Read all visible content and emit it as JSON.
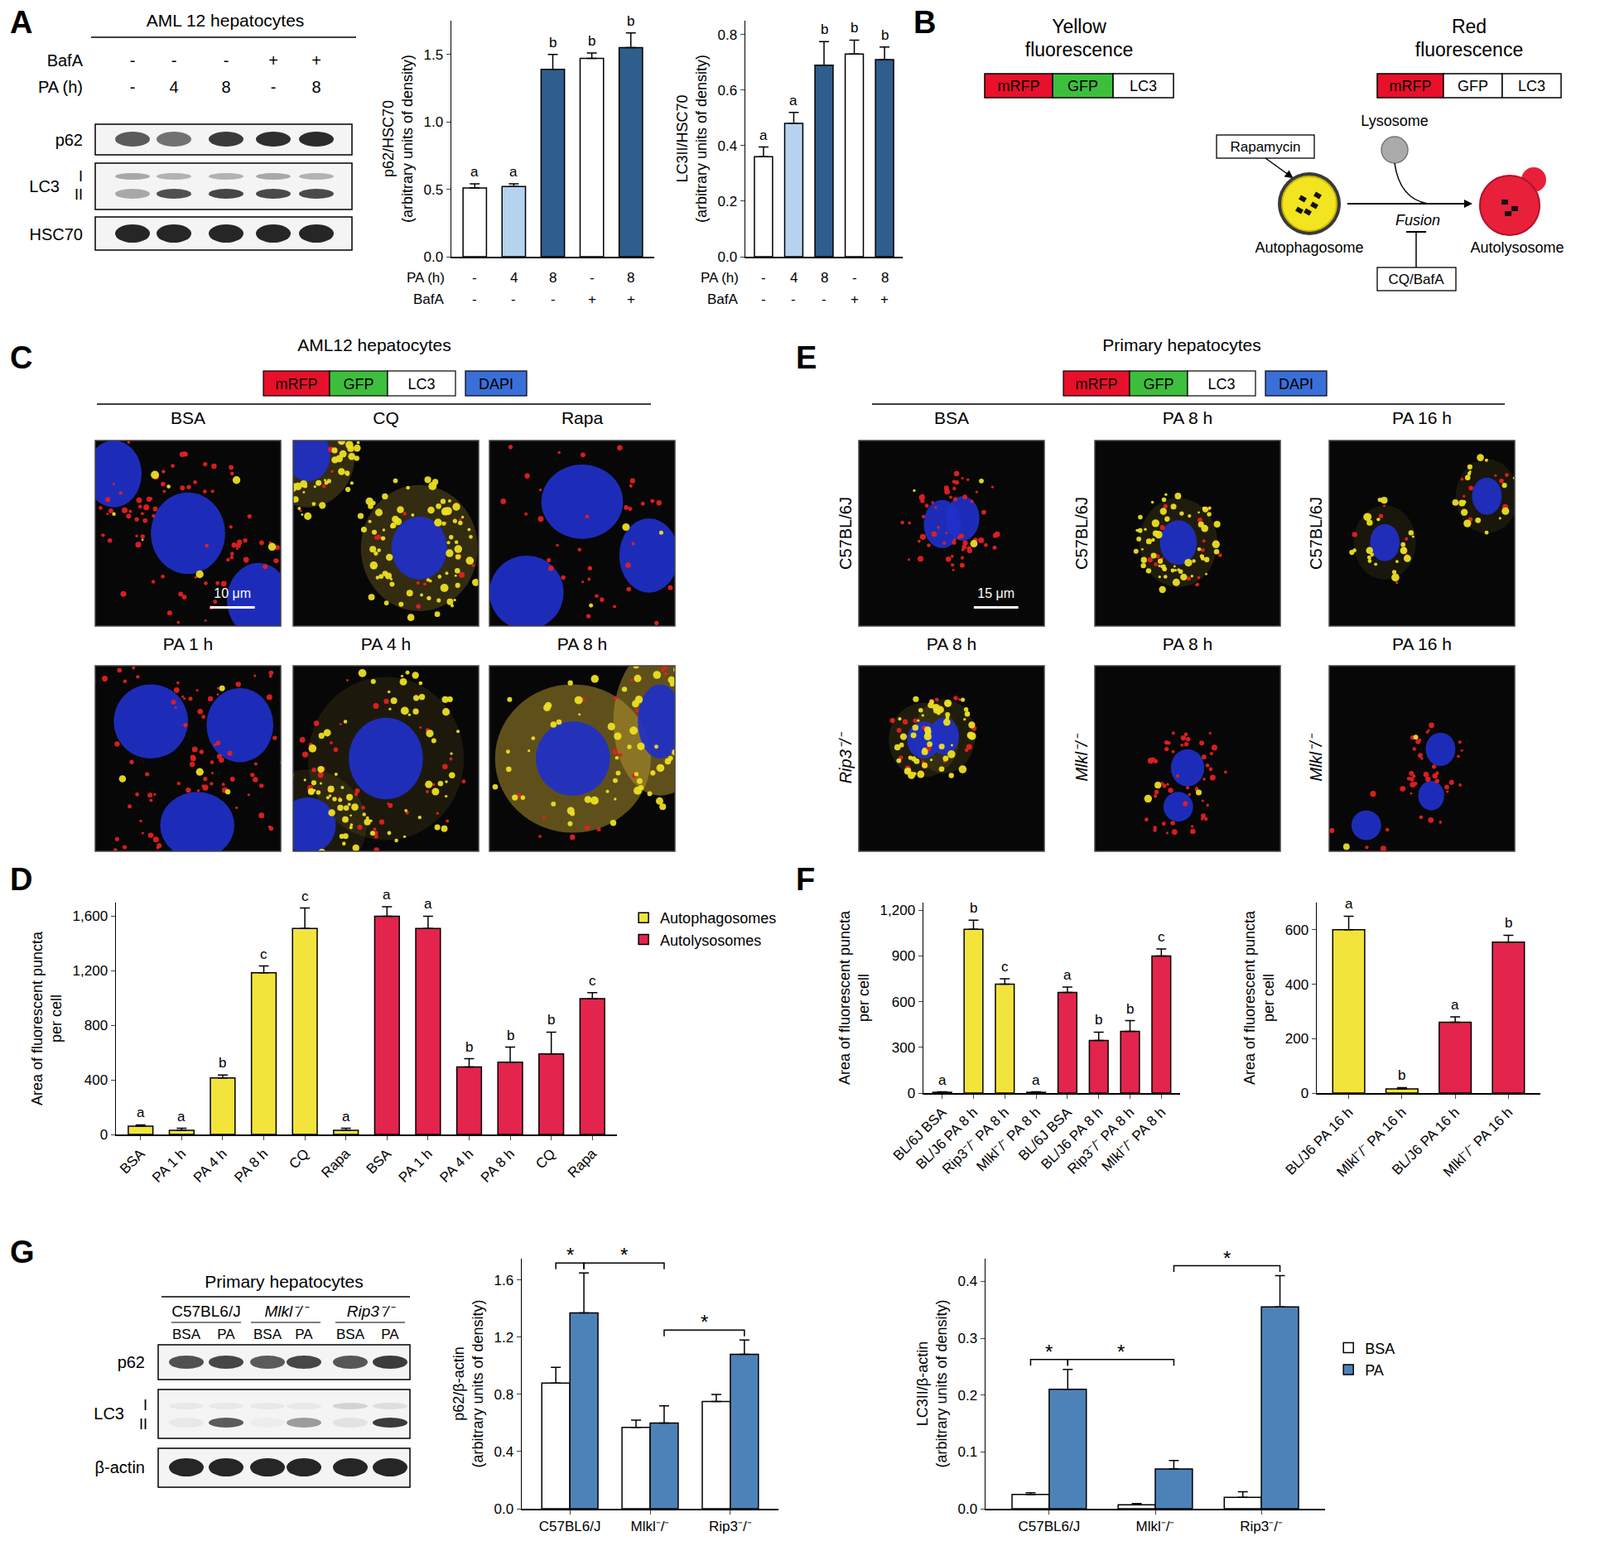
{
  "chart_data": [
    {
      "type": "bar",
      "categories": [
        null,
        null,
        null,
        null,
        null
      ],
      "x_rows": [
        {
          "label": "PA (h)",
          "values": [
            "-",
            "4",
            "8",
            "-",
            "8"
          ]
        },
        {
          "label": "BafA",
          "values": [
            "-",
            "-",
            "-",
            "+",
            "+"
          ]
        }
      ],
      "values": [
        0.51,
        0.52,
        1.39,
        1.47,
        1.55
      ],
      "errors": [
        0.03,
        0.02,
        0.11,
        0.04,
        0.11
      ],
      "letters": [
        "a",
        "a",
        "b",
        "b",
        "b"
      ],
      "colors": [
        "#ffffff",
        "#b5d3ef",
        "#2f5d8c",
        "#ffffff",
        "#2f5d8c"
      ],
      "y_label": [
        "p62/HSC70",
        "(arbitrary units of density)"
      ],
      "ylim": [
        0,
        1.75
      ],
      "yticks": [
        {
          "value": 0,
          "label": "0.0"
        },
        {
          "value": 0.5,
          "label": "0.5"
        },
        {
          "value": 1,
          "label": "1.0"
        },
        {
          "value": 1.5,
          "label": "1.5"
        }
      ]
    },
    {
      "type": "bar",
      "categories": [
        null,
        null,
        null,
        null,
        null
      ],
      "x_rows": [
        {
          "label": "PA (h)",
          "values": [
            "-",
            "4",
            "8",
            "-",
            "8"
          ]
        },
        {
          "label": "BafA",
          "values": [
            "-",
            "-",
            "-",
            "+",
            "+"
          ]
        }
      ],
      "values": [
        0.36,
        0.48,
        0.69,
        0.73,
        0.71
      ],
      "errors": [
        0.035,
        0.04,
        0.085,
        0.05,
        0.045
      ],
      "letters": [
        "a",
        "a",
        "b",
        "b",
        "b"
      ],
      "colors": [
        "#ffffff",
        "#b5d3ef",
        "#2f5d8c",
        "#ffffff",
        "#2f5d8c"
      ],
      "y_label": [
        "LC3II/HSC70",
        "(arbitrary units of density)"
      ],
      "ylim": [
        0,
        0.85
      ],
      "yticks": [
        {
          "value": 0,
          "label": "0.0"
        },
        {
          "value": 0.2,
          "label": "0.2"
        },
        {
          "value": 0.4,
          "label": "0.4"
        },
        {
          "value": 0.6,
          "label": "0.6"
        },
        {
          "value": 0.8,
          "label": "0.8"
        }
      ]
    },
    {
      "type": "bar",
      "categories": [
        "BSA",
        "PA 1 h",
        "PA 4 h",
        "PA 8 h",
        "CQ",
        "Rapa",
        "BSA",
        "PA 1 h",
        "PA 4 h",
        "PA 8 h",
        "CQ",
        "Rapa"
      ],
      "series": [
        {
          "name": "Autophagosomes",
          "color": "#f2e43a",
          "values": [
            60,
            30,
            415,
            1185,
            1510,
            30,
            null,
            null,
            null,
            null,
            null,
            null
          ],
          "errors": [
            10,
            15,
            20,
            50,
            150,
            15,
            null,
            null,
            null,
            null,
            null,
            null
          ],
          "letters": [
            "a",
            "a",
            "b",
            "c",
            "c",
            "a",
            null,
            null,
            null,
            null,
            null,
            null
          ]
        },
        {
          "name": "Autolysosomes",
          "color": "#e3244d",
          "values": [
            null,
            null,
            null,
            null,
            null,
            null,
            1600,
            1510,
            495,
            530,
            590,
            995
          ],
          "errors": [
            null,
            null,
            null,
            null,
            null,
            null,
            70,
            90,
            60,
            110,
            160,
            45
          ],
          "letters": [
            null,
            null,
            null,
            null,
            null,
            null,
            "a",
            "a",
            "b",
            "b",
            "b",
            "c"
          ]
        }
      ],
      "legend": "top right",
      "y_label": [
        "Area of fluorescent puncta",
        "per cell"
      ],
      "ylim": [
        0,
        1700
      ],
      "yticks": [
        0,
        400,
        800,
        {
          "value": 1200,
          "label": "1,200"
        },
        {
          "value": 1600,
          "label": "1,600"
        }
      ]
    },
    {
      "type": "bar",
      "categories": [
        "BL/6J BSA",
        "BL/J6 PA 8 h",
        "Rip3⁻/⁻ PA 8 h",
        "Mlkl⁻/⁻ PA 8 h",
        "BL/6J BSA",
        "BL/J6 PA 8 h",
        "Rip3⁻/⁻ PA 8 h",
        "Mlkl⁻/⁻ PA 8 h"
      ],
      "series": [
        {
          "color": "#f2e43a",
          "values": [
            5,
            1075,
            715,
            5,
            null,
            null,
            null,
            null
          ],
          "errors": [
            3,
            60,
            35,
            3,
            null,
            null,
            null,
            null
          ],
          "letters": [
            "a",
            "b",
            "c",
            "a",
            null,
            null,
            null,
            null
          ]
        },
        {
          "color": "#e3244d",
          "values": [
            null,
            null,
            null,
            null,
            660,
            345,
            405,
            900
          ],
          "errors": [
            null,
            null,
            null,
            null,
            35,
            55,
            70,
            45
          ],
          "letters": [
            null,
            null,
            null,
            null,
            "a",
            "b",
            "b",
            "c"
          ]
        }
      ],
      "y_label": [
        "Area of fluorescent puncta",
        "per cell"
      ],
      "ylim": [
        0,
        1250
      ],
      "yticks": [
        0,
        300,
        600,
        900,
        {
          "value": 1200,
          "label": "1,200"
        }
      ]
    },
    {
      "type": "bar",
      "categories": [
        "BL/J6 PA 16 h",
        "Mlkl⁻/⁻ PA 16 h",
        "BL/J6 PA 16 h",
        "Mlkl⁻/⁻ PA 16 h"
      ],
      "series": [
        {
          "color": "#f2e43a",
          "values": [
            600,
            15,
            null,
            null
          ],
          "errors": [
            50,
            5,
            null,
            null
          ],
          "letters": [
            "a",
            "b",
            null,
            null
          ]
        },
        {
          "color": "#e3244d",
          "values": [
            null,
            null,
            260,
            555
          ],
          "errors": [
            null,
            null,
            20,
            25
          ],
          "letters": [
            null,
            null,
            "a",
            "b"
          ]
        }
      ],
      "y_label": [
        "Area of fluorescent puncta",
        "per cell"
      ],
      "ylim": [
        0,
        700
      ],
      "yticks": [
        0,
        200,
        400,
        600
      ]
    },
    {
      "type": "bar",
      "categories": [
        "C57BL6/J",
        "Mlkl⁻/⁻",
        "Rip3⁻/⁻"
      ],
      "series": [
        {
          "color": "#ffffff",
          "values": [
            0.88,
            0.57,
            0.75
          ],
          "errors": [
            0.11,
            0.05,
            0.05
          ]
        },
        {
          "color": "#4d82b8",
          "values": [
            1.37,
            0.6,
            1.08
          ],
          "errors": [
            0.28,
            0.12,
            0.1
          ]
        }
      ],
      "brackets": [
        {
          "from": [
            0,
            0
          ],
          "to": [
            0,
            1
          ],
          "label": "*"
        },
        {
          "from": [
            0,
            1
          ],
          "to": [
            1,
            1
          ],
          "label": "*"
        },
        {
          "from": [
            1,
            1
          ],
          "to": [
            2,
            1
          ],
          "label": "*"
        }
      ],
      "y_label": [
        "p62/β-actin",
        "(arbitrary units of density)"
      ],
      "ylim": [
        0,
        1.75
      ],
      "yticks": [
        {
          "value": 0,
          "label": "0.0"
        },
        {
          "value": 0.4,
          "label": "0.4"
        },
        {
          "value": 0.8,
          "label": "0.8"
        },
        {
          "value": 1.2,
          "label": "1.2"
        },
        {
          "value": 1.6,
          "label": "1.6"
        }
      ]
    },
    {
      "type": "bar",
      "categories": [
        "C57BL6/J",
        "Mlkl⁻/⁻",
        "Rip3⁻/⁻"
      ],
      "series": [
        {
          "name": "BSA",
          "color": "#ffffff",
          "values": [
            0.025,
            0.007,
            0.02
          ],
          "errors": [
            0.003,
            0.002,
            0.01
          ]
        },
        {
          "name": "PA",
          "color": "#4d82b8",
          "values": [
            0.21,
            0.07,
            0.355
          ],
          "errors": [
            0.035,
            0.015,
            0.055
          ]
        }
      ],
      "brackets": [
        {
          "from": [
            0,
            0
          ],
          "to": [
            0,
            1
          ],
          "label": "*"
        },
        {
          "from": [
            0,
            1
          ],
          "to": [
            1,
            1
          ],
          "label": "*"
        },
        {
          "from": [
            1,
            1
          ],
          "to": [
            2,
            1
          ],
          "label": "*"
        }
      ],
      "legend": "right",
      "y_label": [
        "LC3II/β-actin",
        "(arbitrary units of density)"
      ],
      "ylim": [
        0,
        0.44
      ],
      "yticks": [
        {
          "value": 0,
          "label": "0.0"
        },
        {
          "value": 0.1,
          "label": "0.1"
        },
        {
          "value": 0.2,
          "label": "0.2"
        },
        {
          "value": 0.3,
          "label": "0.3"
        },
        {
          "value": 0.4,
          "label": "0.4"
        }
      ]
    }
  ],
  "figure": {
    "panel_letters": [
      "A",
      "B",
      "C",
      "D",
      "E",
      "F",
      "G"
    ],
    "blot_A": {
      "title": "AML 12 hepatocytes",
      "rows": [
        {
          "label": "BafA",
          "values": [
            "-",
            "-",
            "-",
            "+",
            "+"
          ]
        },
        {
          "label": "PA (h)",
          "values": [
            "-",
            "4",
            "8",
            "-",
            "8"
          ]
        }
      ],
      "bands": [
        {
          "label": "p62"
        },
        {
          "label": "LC3",
          "sub": [
            "I",
            "II"
          ]
        },
        {
          "label": "HSC70"
        }
      ]
    },
    "blot_G": {
      "title": "Primary hepatocytes",
      "groups": [
        "C57BL6/J",
        "Mlkl⁻/⁻",
        "Rip3⁻/⁻"
      ],
      "lanes": [
        "BSA",
        "PA",
        "BSA",
        "PA",
        "BSA",
        "PA"
      ],
      "bands": [
        {
          "label": "p62"
        },
        {
          "label": "LC3",
          "sub": [
            "I",
            "II"
          ]
        },
        {
          "label": "β-actin"
        }
      ]
    },
    "diagram": {
      "yellow_title": [
        "Yellow",
        "fluorescence"
      ],
      "red_title": [
        "Red",
        "fluorescence"
      ],
      "construct": [
        "mRFP",
        "GFP",
        "LC3"
      ],
      "rapamycin": "Rapamycin",
      "lysosome": "Lysosome",
      "autophagosome": "Autophagosome",
      "fusion": "Fusion",
      "inhibitor": "CQ/BafA",
      "autolysosome": "Autolysosome"
    },
    "micrographs_C": {
      "title": "AML12 hepatocytes",
      "key": [
        "mRFP",
        "GFP",
        "LC3",
        "DAPI"
      ],
      "scale": "10 μm",
      "images": [
        {
          "title": "BSA"
        },
        {
          "title": "CQ"
        },
        {
          "title": "Rapa"
        },
        {
          "title": "PA 1 h"
        },
        {
          "title": "PA 4 h"
        },
        {
          "title": "PA 8 h"
        }
      ]
    },
    "micrographs_E": {
      "title": "Primary hepatocytes",
      "key": [
        "mRFP",
        "GFP",
        "LC3",
        "DAPI"
      ],
      "scale": "15 μm",
      "images": [
        {
          "title": "BSA",
          "row_label": "C57BL/6J"
        },
        {
          "title": "PA 8 h",
          "row_label": "C57BL/6J"
        },
        {
          "title": "PA 16 h",
          "row_label": "C57BL/6J"
        },
        {
          "title": "PA 8 h",
          "row_label": "Rip3⁻/⁻"
        },
        {
          "title": "PA 8 h",
          "row_label": "Mlkl⁻/⁻"
        },
        {
          "title": "PA 16 h",
          "row_label": "Mlkl⁻/⁻"
        }
      ]
    }
  }
}
